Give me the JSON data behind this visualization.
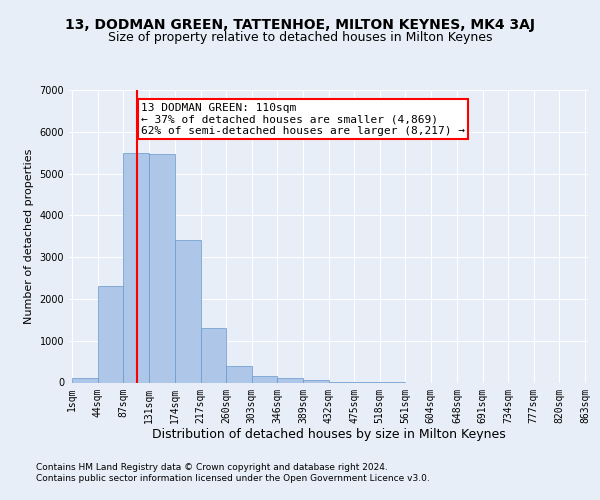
{
  "title": "13, DODMAN GREEN, TATTENHOE, MILTON KEYNES, MK4 3AJ",
  "subtitle": "Size of property relative to detached houses in Milton Keynes",
  "xlabel": "Distribution of detached houses by size in Milton Keynes",
  "ylabel": "Number of detached properties",
  "bin_edges": [
    1,
    44,
    87,
    131,
    174,
    217,
    260,
    303,
    346,
    389,
    432,
    475,
    518,
    561,
    604,
    648,
    691,
    734,
    777,
    820,
    863
  ],
  "bin_labels": [
    "1sqm",
    "44sqm",
    "87sqm",
    "131sqm",
    "174sqm",
    "217sqm",
    "260sqm",
    "303sqm",
    "346sqm",
    "389sqm",
    "432sqm",
    "475sqm",
    "518sqm",
    "561sqm",
    "604sqm",
    "648sqm",
    "691sqm",
    "734sqm",
    "777sqm",
    "820sqm",
    "863sqm"
  ],
  "bar_heights": [
    100,
    2300,
    5500,
    5480,
    3400,
    1300,
    400,
    150,
    100,
    50,
    20,
    10,
    5,
    0,
    0,
    0,
    0,
    0,
    0,
    0
  ],
  "bar_color": "#aec6e8",
  "bar_edgecolor": "#6699cc",
  "vline_x": 110,
  "vline_color": "red",
  "annotation_text": "13 DODMAN GREEN: 110sqm\n← 37% of detached houses are smaller (4,869)\n62% of semi-detached houses are larger (8,217) →",
  "annotation_box_color": "white",
  "annotation_box_edgecolor": "red",
  "ylim": [
    0,
    7000
  ],
  "yticks": [
    0,
    1000,
    2000,
    3000,
    4000,
    5000,
    6000,
    7000
  ],
  "bg_color": "#e8eef7",
  "plot_bg_color": "#e8eef7",
  "footer1": "Contains HM Land Registry data © Crown copyright and database right 2024.",
  "footer2": "Contains public sector information licensed under the Open Government Licence v3.0.",
  "title_fontsize": 10,
  "subtitle_fontsize": 9,
  "xlabel_fontsize": 9,
  "ylabel_fontsize": 8,
  "tick_fontsize": 7,
  "annotation_fontsize": 8,
  "footer_fontsize": 6.5
}
